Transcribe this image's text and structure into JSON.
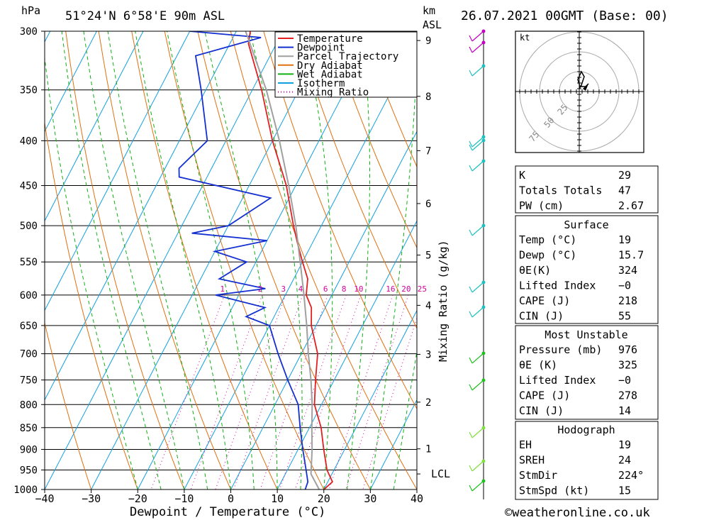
{
  "header": {
    "units_left": "hPa",
    "location": "51°24'N  6°58'E  90m  ASL",
    "units_right_1": "km",
    "units_right_2": "ASL",
    "run": "26.07.2021  00GMT  (Base: 00)"
  },
  "footer": {
    "xlabel": "Dewpoint / Temperature (°C)",
    "copyright": "©weatheronline.co.uk"
  },
  "colors": {
    "temperature": "#e02020",
    "dewpoint": "#1530d0",
    "parcel": "#a0a0a0",
    "dry_adiabat": "#e07010",
    "wet_adiabat": "#10b010",
    "isotherm": "#10a0e0",
    "mixing_ratio": "#d000a0",
    "wind": "#20c0c0"
  },
  "chart_data": {
    "type": "line",
    "title": "",
    "xlabel": "Dewpoint / Temperature (°C)",
    "ylabel": "hPa",
    "x_ticks": [
      "−40",
      "−30",
      "−20",
      "−10",
      "0",
      "10",
      "20",
      "30",
      "40"
    ],
    "p_ticks": [
      "300",
      "350",
      "400",
      "450",
      "500",
      "550",
      "600",
      "650",
      "700",
      "750",
      "800",
      "850",
      "900",
      "950",
      "1000"
    ],
    "km_ticks": [
      "9",
      "8",
      "7",
      "6",
      "5",
      "4",
      "3",
      "2",
      "1"
    ],
    "lcl_label": "LCL",
    "mixing_ratio_label": "Mixing Ratio (g/kg)",
    "mixing_ratio_ticks": [
      "1",
      "2",
      "3",
      "4",
      "6",
      "8",
      "10",
      "16",
      "20",
      "25"
    ],
    "legend": [
      "Temperature",
      "Dewpoint",
      "Parcel Trajectory",
      "Dry Adiabat",
      "Wet Adiabat",
      "Isotherm",
      "Mixing Ratio"
    ],
    "legend_position": "top-right",
    "series": [
      {
        "name": "Temperature",
        "values": [
          {
            "p": 1000,
            "t": 20
          },
          {
            "p": 980,
            "t": 21
          },
          {
            "p": 950,
            "t": 18.5
          },
          {
            "p": 900,
            "t": 15.5
          },
          {
            "p": 850,
            "t": 12.5
          },
          {
            "p": 800,
            "t": 8.5
          },
          {
            "p": 750,
            "t": 6
          },
          {
            "p": 700,
            "t": 3.5
          },
          {
            "p": 650,
            "t": -1
          },
          {
            "p": 620,
            "t": -3
          },
          {
            "p": 600,
            "t": -5.5
          },
          {
            "p": 575,
            "t": -7
          },
          {
            "p": 550,
            "t": -10
          },
          {
            "p": 525,
            "t": -13
          },
          {
            "p": 500,
            "t": -16
          },
          {
            "p": 450,
            "t": -22
          },
          {
            "p": 400,
            "t": -30
          },
          {
            "p": 350,
            "t": -38
          },
          {
            "p": 310,
            "t": -46
          },
          {
            "p": 300,
            "t": -47
          }
        ]
      },
      {
        "name": "Dewpoint",
        "values": [
          {
            "p": 1000,
            "t": 16
          },
          {
            "p": 980,
            "t": 15.7
          },
          {
            "p": 950,
            "t": 14
          },
          {
            "p": 900,
            "t": 11
          },
          {
            "p": 850,
            "t": 8
          },
          {
            "p": 800,
            "t": 5
          },
          {
            "p": 750,
            "t": 0
          },
          {
            "p": 700,
            "t": -5
          },
          {
            "p": 650,
            "t": -10
          },
          {
            "p": 640,
            "t": -14
          },
          {
            "p": 635,
            "t": -16
          },
          {
            "p": 620,
            "t": -13
          },
          {
            "p": 600,
            "t": -25
          },
          {
            "p": 590,
            "t": -15
          },
          {
            "p": 575,
            "t": -26
          },
          {
            "p": 550,
            "t": -22
          },
          {
            "p": 535,
            "t": -30
          },
          {
            "p": 520,
            "t": -20
          },
          {
            "p": 510,
            "t": -37
          },
          {
            "p": 500,
            "t": -30
          },
          {
            "p": 465,
            "t": -24
          },
          {
            "p": 440,
            "t": -46
          },
          {
            "p": 430,
            "t": -47
          },
          {
            "p": 400,
            "t": -44
          },
          {
            "p": 350,
            "t": -51
          },
          {
            "p": 320,
            "t": -56
          },
          {
            "p": 305,
            "t": -44
          },
          {
            "p": 300,
            "t": -60
          }
        ]
      },
      {
        "name": "Parcel Trajectory",
        "values": [
          {
            "p": 1000,
            "t": 19
          },
          {
            "p": 960,
            "t": 15.5
          },
          {
            "p": 900,
            "t": 13
          },
          {
            "p": 850,
            "t": 10.5
          },
          {
            "p": 800,
            "t": 8
          },
          {
            "p": 750,
            "t": 5
          },
          {
            "p": 700,
            "t": 1.5
          },
          {
            "p": 650,
            "t": -2
          },
          {
            "p": 600,
            "t": -6
          },
          {
            "p": 550,
            "t": -10.5
          },
          {
            "p": 500,
            "t": -15.5
          },
          {
            "p": 450,
            "t": -21.5
          },
          {
            "p": 400,
            "t": -28.5
          },
          {
            "p": 350,
            "t": -37
          },
          {
            "p": 300,
            "t": -48
          }
        ]
      }
    ],
    "xlim": [
      -40,
      40
    ],
    "plim": [
      1000,
      300
    ],
    "skew": "skew-T log-p",
    "grid": true
  },
  "hodograph": {
    "unit": "kt",
    "rings": [
      "25",
      "50",
      "75"
    ]
  },
  "indices": {
    "rows": [
      {
        "label": "K",
        "value": "29"
      },
      {
        "label": "Totals Totals",
        "value": "47"
      },
      {
        "label": "PW (cm)",
        "value": "2.67"
      }
    ]
  },
  "surface": {
    "title": "Surface",
    "rows": [
      {
        "label": "Temp (°C)",
        "value": "19"
      },
      {
        "label": "Dewp (°C)",
        "value": "15.7"
      },
      {
        "label": "θE(K)",
        "value": "324"
      },
      {
        "label": "Lifted Index",
        "value": "−0"
      },
      {
        "label": "CAPE (J)",
        "value": "218"
      },
      {
        "label": "CIN (J)",
        "value": "55"
      }
    ]
  },
  "most_unstable": {
    "title": "Most Unstable",
    "rows": [
      {
        "label": "Pressure (mb)",
        "value": "976"
      },
      {
        "label": "θE (K)",
        "value": "325"
      },
      {
        "label": "Lifted Index",
        "value": "−0"
      },
      {
        "label": "CAPE (J)",
        "value": "278"
      },
      {
        "label": "CIN (J)",
        "value": "14"
      }
    ]
  },
  "hodograph_table": {
    "title": "Hodograph",
    "rows": [
      {
        "label": "EH",
        "value": "19"
      },
      {
        "label": "SREH",
        "value": "24"
      },
      {
        "label": "StmDir",
        "value": "224°"
      },
      {
        "label": "StmSpd (kt)",
        "value": "15"
      }
    ]
  }
}
